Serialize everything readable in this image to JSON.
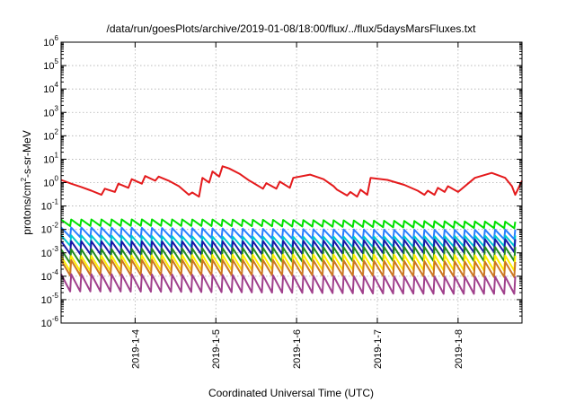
{
  "chart_data": {
    "type": "line",
    "title": "/data/run/goesPlots/archive/2019-01-08/18:00/flux/../flux/5daysMarsFluxes.txt",
    "xlabel": "Coordinated Universal Time (UTC)",
    "ylabel": {
      "prefix": "protons/cm",
      "sup": "2",
      "suffix": "-s-sr-MeV"
    },
    "yscale": "log",
    "ylim": [
      1e-06,
      1000000.0
    ],
    "xlim": [
      "2019-01-03T02:00",
      "2019-01-08T19:00"
    ],
    "grid": true,
    "legend": "none",
    "x_ticks": [
      "2019-1-4",
      "2019-1-5",
      "2019-1-6",
      "2019-1-7",
      "2019-1-8"
    ],
    "x_tick_dates": [
      "2019-01-04T00:00",
      "2019-01-05T00:00",
      "2019-01-06T00:00",
      "2019-01-07T00:00",
      "2019-01-08T00:00"
    ],
    "y_ticks": [
      {
        "base": "10",
        "exp": "-6",
        "value": 1e-06
      },
      {
        "base": "10",
        "exp": "-5",
        "value": 1e-05
      },
      {
        "base": "10",
        "exp": "-4",
        "value": 0.0001
      },
      {
        "base": "10",
        "exp": "-3",
        "value": 0.001
      },
      {
        "base": "10",
        "exp": "-2",
        "value": 0.01
      },
      {
        "base": "10",
        "exp": "-1",
        "value": 0.1
      },
      {
        "base": "10",
        "exp": "0",
        "value": 1
      },
      {
        "base": "10",
        "exp": "1",
        "value": 10
      },
      {
        "base": "10",
        "exp": "2",
        "value": 100
      },
      {
        "base": "10",
        "exp": "3",
        "value": 1000
      },
      {
        "base": "10",
        "exp": "4",
        "value": 10000
      },
      {
        "base": "10",
        "exp": "5",
        "value": 100000
      },
      {
        "base": "10",
        "exp": "6",
        "value": 1000000
      }
    ],
    "series": [
      {
        "color": "#e41a1c",
        "x": [
          "2019-01-03T02:00",
          "2019-01-03T05:00",
          "2019-01-03T08:00",
          "2019-01-03T11:00",
          "2019-01-03T14:00",
          "2019-01-03T15:00",
          "2019-01-03T18:00",
          "2019-01-03T19:00",
          "2019-01-03T22:00",
          "2019-01-03T23:00",
          "2019-01-04T02:00",
          "2019-01-04T03:00",
          "2019-01-04T06:00",
          "2019-01-04T07:00",
          "2019-01-04T10:00",
          "2019-01-04T13:00",
          "2019-01-04T16:00",
          "2019-01-04T17:00",
          "2019-01-04T19:00",
          "2019-01-04T20:00",
          "2019-01-04T22:00",
          "2019-01-04T23:00",
          "2019-01-05T01:00",
          "2019-01-05T02:00",
          "2019-01-05T04:00",
          "2019-01-05T07:00",
          "2019-01-05T10:00",
          "2019-01-05T11:00",
          "2019-01-05T14:00",
          "2019-01-05T15:00",
          "2019-01-05T18:00",
          "2019-01-05T19:00",
          "2019-01-05T22:00",
          "2019-01-05T23:00",
          "2019-01-06T04:00",
          "2019-01-06T08:00",
          "2019-01-06T11:00",
          "2019-01-06T12:00",
          "2019-01-06T15:00",
          "2019-01-06T16:00",
          "2019-01-06T18:00",
          "2019-01-06T19:00",
          "2019-01-06T21:00",
          "2019-01-06T22:00",
          "2019-01-07T03:00",
          "2019-01-07T08:00",
          "2019-01-07T12:00",
          "2019-01-07T14:00",
          "2019-01-07T15:00",
          "2019-01-07T17:00",
          "2019-01-07T18:00",
          "2019-01-07T20:00",
          "2019-01-07T21:00",
          "2019-01-08T00:00",
          "2019-01-08T05:00",
          "2019-01-08T10:00",
          "2019-01-08T14:00",
          "2019-01-08T16:00",
          "2019-01-08T17:00",
          "2019-01-08T19:00"
        ],
        "y": [
          1.3,
          0.9,
          0.65,
          0.45,
          0.3,
          0.55,
          0.4,
          0.9,
          0.6,
          1.4,
          0.9,
          1.9,
          1.2,
          1.8,
          1.2,
          0.7,
          0.3,
          0.38,
          0.25,
          1.6,
          1.0,
          3.0,
          1.8,
          5.0,
          4.0,
          2.4,
          1.2,
          1.0,
          0.55,
          0.95,
          0.55,
          1.1,
          0.6,
          1.6,
          2.2,
          1.4,
          0.7,
          0.5,
          0.28,
          0.4,
          0.25,
          0.5,
          0.3,
          1.6,
          1.3,
          0.8,
          0.45,
          0.3,
          0.45,
          0.3,
          0.6,
          0.4,
          0.7,
          0.4,
          1.6,
          2.6,
          1.6,
          0.7,
          0.3,
          1.2
        ]
      },
      {
        "color": "#00e000",
        "base": 0.024,
        "ratio": 1.9,
        "period_hours": 3
      },
      {
        "color": "#2a7fff",
        "base": 0.011,
        "ratio": 2.6,
        "period_hours": 3
      },
      {
        "color": "#00c8d2",
        "base": 0.0055,
        "ratio": 2.8,
        "period_hours": 3
      },
      {
        "color": "#1a1aa8",
        "base": 0.0035,
        "ratio": 3.6,
        "period_hours": 3
      },
      {
        "color": "#228b22",
        "base": 0.0016,
        "ratio": 4.0,
        "period_hours": 3
      },
      {
        "color": "#ffee00",
        "base": 0.00075,
        "ratio": 4.5,
        "period_hours": 3
      },
      {
        "color": "#cc7722",
        "base": 0.00045,
        "ratio": 4.5,
        "period_hours": 3
      },
      {
        "color": "#a0408c",
        "base": 0.00011,
        "ratio": 5.5,
        "period_hours": 3
      }
    ]
  }
}
